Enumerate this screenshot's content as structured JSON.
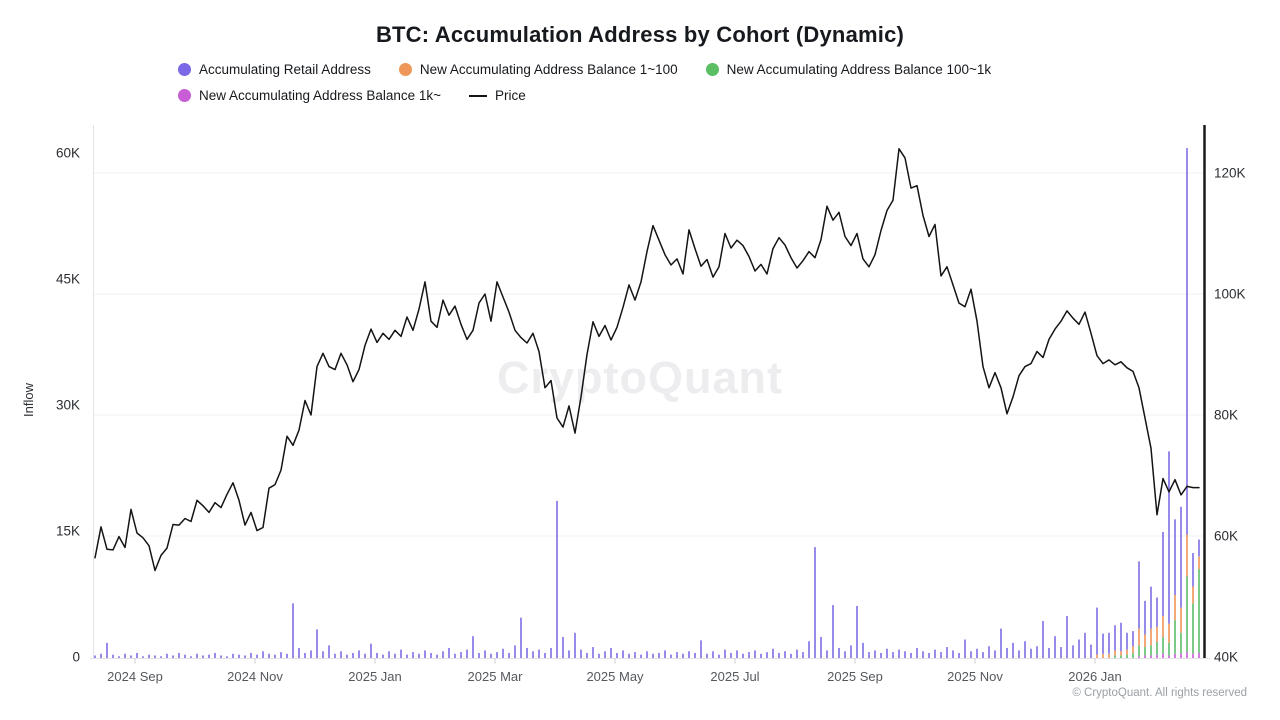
{
  "title": "BTC: Accumulation Address by Cohort (Dynamic)",
  "watermark": "CryptoQuant",
  "copyright": "© CryptoQuant. All rights reserved",
  "legend": {
    "items": [
      {
        "label": "Accumulating Retail Address",
        "color": "#7b68e6",
        "marker": "dot"
      },
      {
        "label": "New Accumulating Address Balance 1~100",
        "color": "#ef975b",
        "marker": "dot"
      },
      {
        "label": "New Accumulating Address Balance 100~1k",
        "color": "#5abf63",
        "marker": "dot"
      },
      {
        "label": "New Accumulating Address Balance 1k~",
        "color": "#c75ed6",
        "marker": "dot"
      },
      {
        "label": "Price",
        "color": "#141414",
        "marker": "line"
      }
    ]
  },
  "axes": {
    "y_left": {
      "title": "Inflow",
      "ticks": [
        {
          "value": 0,
          "label": "0"
        },
        {
          "value": 15,
          "label": "15K"
        },
        {
          "value": 30,
          "label": "30K"
        },
        {
          "value": 45,
          "label": "45K"
        },
        {
          "value": 60,
          "label": "60K"
        }
      ]
    },
    "y_right": {
      "ticks": [
        {
          "value": 40,
          "label": "40K"
        },
        {
          "value": 60,
          "label": "60K"
        },
        {
          "value": 80,
          "label": "80K"
        },
        {
          "value": 100,
          "label": "100K"
        },
        {
          "value": 120,
          "label": "120K"
        }
      ]
    },
    "x": {
      "tick_labels": [
        "2024 Sep",
        "2024 Nov",
        "2025 Jan",
        "2025 Mar",
        "2025 May",
        "2025 Jul",
        "2025 Sep",
        "2025 Nov",
        "2026 Jan"
      ]
    }
  },
  "chart_data": {
    "type": "mixed-stacked-bar-and-line",
    "x_range": "mid-Aug 2024 to Feb 2026, one point per ~3 days",
    "inflow_axis": {
      "label": "Inflow",
      "unit": "K addresses",
      "range": [
        0,
        63
      ],
      "grid": "horizontal, aligned to price ticks"
    },
    "price_axis": {
      "unit": "K USD",
      "range": [
        40,
        128
      ]
    },
    "legend_position": "top",
    "bar_series": [
      {
        "name": "Accumulating Retail Address",
        "color": "#8477e6",
        "offset": 0,
        "values": [
          0.3,
          0.5,
          1.8,
          0.4,
          0.2,
          0.5,
          0.3,
          0.6,
          0.2,
          0.4,
          0.3,
          0.2,
          0.5,
          0.3,
          0.6,
          0.4,
          0.2,
          0.5,
          0.3,
          0.4,
          0.6,
          0.3,
          0.2,
          0.5,
          0.4,
          0.3,
          0.6,
          0.4,
          0.8,
          0.5,
          0.4,
          0.7,
          0.5,
          6.5,
          1.2,
          0.6,
          0.9,
          3.4,
          0.8,
          1.5,
          0.5,
          0.8,
          0.4,
          0.6,
          0.9,
          0.5,
          1.7,
          0.6,
          0.4,
          0.8,
          0.5,
          1.0,
          0.4,
          0.7,
          0.5,
          0.9,
          0.6,
          0.4,
          0.8,
          1.2,
          0.5,
          0.7,
          1.0,
          2.6,
          0.6,
          0.9,
          0.5,
          0.7,
          1.1,
          0.6,
          1.5,
          4.8,
          1.2,
          0.8,
          1.0,
          0.6,
          1.2,
          18.7,
          2.5,
          0.9,
          3.0,
          1.0,
          0.6,
          1.3,
          0.5,
          0.8,
          1.2,
          0.6,
          0.9,
          0.5,
          0.7,
          0.4,
          0.8,
          0.5,
          0.6,
          0.9,
          0.4,
          0.7,
          0.5,
          0.8,
          0.6,
          2.1,
          0.5,
          0.8,
          0.4,
          1.0,
          0.6,
          0.9,
          0.5,
          0.7,
          0.9,
          0.5,
          0.7,
          1.1,
          0.6,
          0.8,
          0.5,
          1.0,
          0.7,
          2.0,
          13.2,
          2.5,
          0.9,
          6.3,
          1.2,
          0.8,
          1.5,
          6.2,
          1.8,
          0.7,
          0.9,
          0.6,
          1.1,
          0.7,
          1.0,
          0.8,
          0.6,
          1.2,
          0.8,
          0.6,
          1.0,
          0.7,
          1.3,
          0.9,
          0.6,
          2.2,
          0.8,
          1.1,
          0.7,
          1.4,
          0.9,
          3.5,
          1.2,
          1.8,
          0.9,
          2.0,
          1.1,
          1.4,
          4.4,
          1.2,
          2.6,
          1.3,
          5.0,
          1.5,
          2.2,
          3.0,
          1.6,
          5.6,
          2.4,
          2.5,
          3.0,
          3.4,
          2.0,
          1.8,
          8.0,
          4.0,
          5.0,
          3.5,
          10.0,
          20.5,
          9.0,
          12.0,
          46.0,
          4.0,
          2.0
        ]
      },
      {
        "name": "New Accumulating Address Balance 1~100",
        "color": "#f09a5e",
        "offset": 167,
        "values": [
          0.4,
          0.5,
          0.5,
          0.6,
          0.5,
          0.6,
          0.8,
          2.0,
          1.5,
          2.0,
          1.8,
          2.5,
          2.3,
          3.0,
          3.0,
          5.0,
          2.0,
          1.5
        ]
      },
      {
        "name": "New Accumulating Address Balance 100~1k",
        "color": "#66c173",
        "offset": 170,
        "values": [
          0.3,
          0.3,
          0.4,
          0.6,
          1.3,
          1.0,
          1.2,
          1.5,
          2.0,
          1.5,
          4.0,
          2.5,
          9.0,
          6.0,
          10.0
        ]
      },
      {
        "name": "New Accumulating Address Balance 1k~",
        "color": "#cb64d8",
        "offset": 174,
        "values": [
          0.2,
          0.3,
          0.3,
          0.4,
          0.5,
          0.3,
          0.5,
          0.5,
          0.7,
          0.5,
          0.6
        ]
      }
    ],
    "line_series": {
      "name": "Price",
      "color": "#141414",
      "unit": "K USD",
      "values": [
        56.4,
        61.5,
        57.8,
        57.7,
        59.9,
        58.1,
        64.4,
        60.5,
        59.7,
        58.4,
        54.3,
        56.8,
        58.0,
        61.9,
        61.8,
        62.9,
        62.4,
        65.9,
        65.0,
        63.9,
        65.5,
        64.7,
        66.9,
        68.8,
        65.9,
        61.8,
        63.9,
        60.9,
        61.4,
        67.9,
        68.5,
        70.9,
        76.5,
        75.0,
        77.5,
        82.4,
        80.0,
        88.0,
        90.2,
        88.0,
        87.5,
        90.2,
        88.3,
        85.5,
        87.5,
        91.5,
        94.2,
        92.0,
        93.5,
        92.5,
        94.0,
        93.0,
        96.2,
        94.0,
        97.5,
        102.0,
        95.5,
        94.5,
        99.0,
        96.5,
        98.0,
        95.0,
        92.5,
        94.0,
        98.5,
        100.0,
        95.5,
        102.0,
        99.5,
        97.0,
        94.0,
        92.8,
        91.9,
        93.5,
        90.5,
        84.5,
        85.7,
        79.5,
        78.0,
        81.5,
        77.0,
        83.0,
        90.0,
        95.4,
        93.0,
        94.8,
        92.4,
        94.5,
        97.8,
        101.5,
        99.0,
        102.0,
        107.0,
        111.3,
        108.9,
        106.5,
        104.8,
        105.8,
        103.3,
        110.6,
        107.5,
        104.6,
        105.7,
        102.8,
        104.5,
        110.0,
        107.6,
        108.9,
        108.0,
        106.2,
        103.8,
        104.9,
        103.3,
        107.5,
        109.3,
        108.1,
        106.0,
        104.3,
        105.5,
        107.0,
        106.0,
        109.0,
        114.5,
        112.2,
        113.5,
        109.5,
        108.0,
        110.0,
        105.8,
        104.5,
        106.5,
        110.5,
        113.8,
        115.5,
        124.0,
        122.5,
        117.5,
        117.9,
        113.0,
        109.5,
        111.5,
        103.0,
        104.5,
        101.5,
        98.5,
        97.9,
        100.8,
        95.5,
        88.0,
        84.5,
        87.0,
        84.5,
        80.2,
        83.0,
        86.5,
        88.0,
        88.5,
        90.5,
        89.5,
        92.5,
        94.2,
        95.5,
        97.2,
        96.0,
        95.0,
        97.0,
        93.5,
        89.8,
        88.5,
        89.1,
        88.3,
        88.8,
        87.8,
        87.2,
        84.5,
        79.5,
        74.5,
        63.5,
        69.5,
        67.3,
        69.3,
        66.8,
        68.2,
        68.0,
        68.0
      ]
    }
  }
}
